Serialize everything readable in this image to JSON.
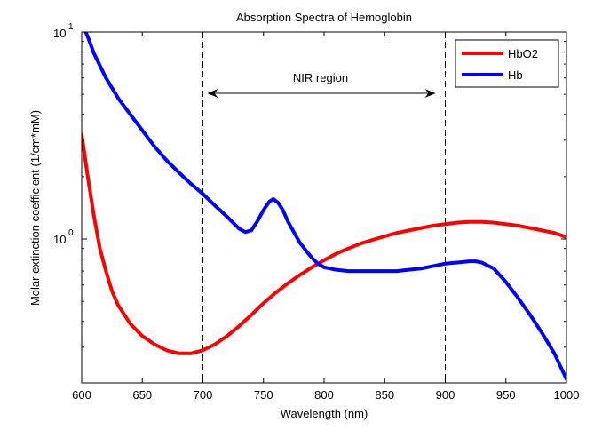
{
  "chart_data": {
    "type": "line",
    "title": "Absorption Spectra of Hemoglobin",
    "xlabel": "Wavelength (nm)",
    "ylabel": "Molar extinction coefficient (1/cm*mM)",
    "xlim": [
      600,
      1000
    ],
    "ylim": [
      0.2,
      10
    ],
    "yscale": "log",
    "grid": false,
    "legend_position": "top-right",
    "x_ticks": [
      "600",
      "650",
      "700",
      "750",
      "800",
      "850",
      "900",
      "950",
      "1000"
    ],
    "y_tick_labels": {
      "one_base": "10",
      "one_exp": "0",
      "ten_base": "10",
      "ten_exp": "1"
    },
    "annotation": {
      "text": "NIR region",
      "from_x": 700,
      "to_x": 900
    },
    "vlines": [
      700,
      900
    ],
    "series": [
      {
        "name": "HbO2",
        "color": "#ff0000",
        "x": [
          600,
          605,
          610,
          615,
          620,
          625,
          630,
          640,
          650,
          660,
          670,
          680,
          690,
          700,
          710,
          720,
          730,
          740,
          750,
          760,
          770,
          780,
          790,
          800,
          810,
          820,
          830,
          840,
          850,
          860,
          870,
          880,
          890,
          900,
          910,
          920,
          930,
          940,
          950,
          960,
          970,
          980,
          990,
          1000
        ],
        "y": [
          3.2,
          2.0,
          1.3,
          0.9,
          0.7,
          0.56,
          0.48,
          0.39,
          0.34,
          0.31,
          0.29,
          0.28,
          0.28,
          0.29,
          0.31,
          0.34,
          0.38,
          0.43,
          0.49,
          0.55,
          0.61,
          0.67,
          0.73,
          0.79,
          0.85,
          0.9,
          0.95,
          0.99,
          1.03,
          1.07,
          1.1,
          1.13,
          1.16,
          1.18,
          1.2,
          1.21,
          1.21,
          1.2,
          1.18,
          1.16,
          1.13,
          1.1,
          1.07,
          1.02
        ]
      },
      {
        "name": "Hb",
        "color": "#0000ff",
        "x": [
          600,
          605,
          610,
          620,
          630,
          640,
          650,
          660,
          670,
          680,
          690,
          700,
          710,
          720,
          730,
          735,
          740,
          745,
          750,
          755,
          758,
          762,
          766,
          770,
          775,
          780,
          785,
          790,
          795,
          800,
          810,
          820,
          830,
          840,
          850,
          860,
          870,
          880,
          890,
          900,
          910,
          920,
          925,
          930,
          940,
          950,
          960,
          970,
          980,
          990,
          1000
        ],
        "y": [
          11.0,
          9.5,
          7.9,
          6.0,
          4.8,
          4.0,
          3.35,
          2.8,
          2.4,
          2.1,
          1.85,
          1.65,
          1.45,
          1.28,
          1.12,
          1.08,
          1.1,
          1.22,
          1.38,
          1.52,
          1.56,
          1.5,
          1.38,
          1.22,
          1.08,
          0.96,
          0.88,
          0.81,
          0.76,
          0.73,
          0.71,
          0.7,
          0.7,
          0.7,
          0.7,
          0.7,
          0.71,
          0.72,
          0.74,
          0.76,
          0.77,
          0.78,
          0.78,
          0.77,
          0.72,
          0.62,
          0.52,
          0.43,
          0.35,
          0.28,
          0.21
        ]
      }
    ]
  }
}
